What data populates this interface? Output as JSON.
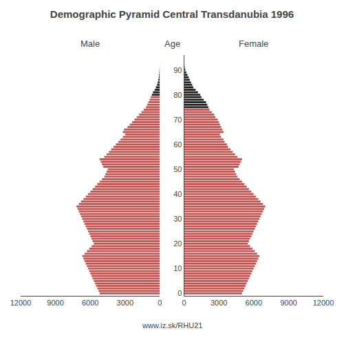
{
  "chart_data": {
    "type": "bar",
    "orientation": "horizontal",
    "title": "Demographic Pyramid Central Transdanubia 1996",
    "ylabel": "Age",
    "annotations": [
      "www.iz.sk/RHU21"
    ],
    "categories": [
      0,
      1,
      2,
      3,
      4,
      5,
      6,
      7,
      8,
      9,
      10,
      11,
      12,
      13,
      14,
      15,
      16,
      17,
      18,
      19,
      20,
      21,
      22,
      23,
      24,
      25,
      26,
      27,
      28,
      29,
      30,
      31,
      32,
      33,
      34,
      35,
      36,
      37,
      38,
      39,
      40,
      41,
      42,
      43,
      44,
      45,
      46,
      47,
      48,
      49,
      50,
      51,
      52,
      53,
      54,
      55,
      56,
      57,
      58,
      59,
      60,
      61,
      62,
      63,
      64,
      65,
      66,
      67,
      68,
      69,
      70,
      71,
      72,
      73,
      74,
      75,
      76,
      77,
      78,
      79,
      80,
      81,
      82,
      83,
      84,
      85,
      86,
      87,
      88,
      89,
      90,
      91,
      92,
      93,
      94
    ],
    "series": [
      {
        "name": "Male",
        "values": [
          5200,
          5300,
          5400,
          5500,
          5600,
          5700,
          5800,
          5900,
          6000,
          6100,
          6200,
          6300,
          6400,
          6500,
          6600,
          6700,
          6500,
          6300,
          6100,
          5900,
          5700,
          5800,
          5900,
          6000,
          6100,
          6200,
          6300,
          6400,
          6500,
          6600,
          6700,
          6800,
          6900,
          7000,
          7100,
          7200,
          7000,
          6800,
          6600,
          6400,
          6200,
          6000,
          5800,
          5600,
          5400,
          5200,
          5000,
          4800,
          4700,
          4600,
          4500,
          4900,
          5000,
          5100,
          5200,
          4800,
          4600,
          4400,
          4200,
          4000,
          3800,
          3600,
          3400,
          3200,
          3000,
          3200,
          3100,
          2800,
          2600,
          2400,
          2200,
          2000,
          1800,
          1600,
          1400,
          1200,
          1100,
          1000,
          900,
          800,
          700,
          600,
          450,
          350,
          250,
          200,
          150,
          100,
          80,
          60,
          40,
          20,
          10,
          5,
          3
        ],
        "colors": [
          "#c0504d",
          "#c0504d",
          "#c0504d",
          "#c0504d",
          "#c0504d",
          "#c0504d",
          "#c0504d",
          "#c0504d",
          "#c0504d",
          "#c0504d",
          "#c0504d",
          "#c0504d",
          "#c0504d",
          "#c0504d",
          "#c0504d",
          "#c0504d",
          "#c0504d",
          "#c0504d",
          "#c0504d",
          "#c0504d",
          "#c0504d",
          "#c0504d",
          "#c0504d",
          "#c0504d",
          "#c0504d",
          "#c0504d",
          "#c0504d",
          "#c0504d",
          "#c0504d",
          "#c0504d",
          "#c0504d",
          "#c0504d",
          "#c0504d",
          "#c0504d",
          "#c0504d",
          "#c0504d",
          "#c0504d",
          "#c0504d",
          "#c0504d",
          "#c0504d",
          "#c0504d",
          "#c0504d",
          "#c0504d",
          "#c0504d",
          "#c0504d",
          "#c0504d",
          "#c0504d",
          "#c0504d",
          "#c0504d",
          "#c0504d",
          "#c0504d",
          "#c0504d",
          "#c0504d",
          "#c0504d",
          "#c0504d",
          "#c0504d",
          "#c0504d",
          "#c0504d",
          "#c0504d",
          "#c0504d",
          "#c0504d",
          "#c0504d",
          "#c0504d",
          "#c0504d",
          "#c0504d",
          "#c0504d",
          "#c0504d",
          "#c0504d",
          "#c0504d",
          "#c0504d",
          "#c0504d",
          "#c0504d",
          "#c0504d",
          "#c0504d",
          "#c0504d",
          "#c0504d",
          "#c0504d",
          "#c0504d",
          "#c0504d",
          "#c0504d",
          "#1a1a1a",
          "#1a1a1a",
          "#1a1a1a",
          "#1a1a1a",
          "#1a1a1a",
          "#1a1a1a",
          "#1a1a1a",
          "#1a1a1a",
          "#1a1a1a",
          "#1a1a1a",
          "#1a1a1a",
          "#1a1a1a",
          "#1a1a1a",
          "#1a1a1a",
          "#1a1a1a"
        ]
      },
      {
        "name": "Female",
        "values": [
          5000,
          5100,
          5200,
          5300,
          5400,
          5500,
          5600,
          5700,
          5800,
          5900,
          6000,
          6100,
          6200,
          6300,
          6400,
          6500,
          6300,
          6100,
          5900,
          5700,
          5500,
          5600,
          5700,
          5800,
          5900,
          6000,
          6100,
          6200,
          6300,
          6400,
          6500,
          6600,
          6700,
          6800,
          6900,
          7000,
          6800,
          6600,
          6400,
          6200,
          6000,
          5800,
          5600,
          5400,
          5200,
          5000,
          4800,
          4600,
          4500,
          4400,
          4300,
          4700,
          4800,
          4900,
          5000,
          4600,
          4400,
          4200,
          4000,
          3800,
          3700,
          3500,
          3400,
          3200,
          3100,
          3400,
          3300,
          3200,
          3100,
          3000,
          2900,
          2700,
          2600,
          2400,
          2200,
          2100,
          2000,
          1900,
          1700,
          1500,
          1400,
          1200,
          1000,
          800,
          700,
          600,
          500,
          400,
          300,
          200,
          100,
          60,
          30,
          15,
          5
        ],
        "colors": [
          "#c0504d",
          "#c0504d",
          "#c0504d",
          "#c0504d",
          "#c0504d",
          "#c0504d",
          "#c0504d",
          "#c0504d",
          "#c0504d",
          "#c0504d",
          "#c0504d",
          "#c0504d",
          "#c0504d",
          "#c0504d",
          "#c0504d",
          "#c0504d",
          "#c0504d",
          "#c0504d",
          "#c0504d",
          "#c0504d",
          "#c0504d",
          "#c0504d",
          "#c0504d",
          "#c0504d",
          "#c0504d",
          "#c0504d",
          "#c0504d",
          "#c0504d",
          "#c0504d",
          "#c0504d",
          "#c0504d",
          "#c0504d",
          "#c0504d",
          "#c0504d",
          "#c0504d",
          "#c0504d",
          "#c0504d",
          "#c0504d",
          "#c0504d",
          "#c0504d",
          "#c0504d",
          "#c0504d",
          "#c0504d",
          "#c0504d",
          "#c0504d",
          "#c0504d",
          "#c0504d",
          "#c0504d",
          "#c0504d",
          "#c0504d",
          "#c0504d",
          "#c0504d",
          "#c0504d",
          "#c0504d",
          "#c0504d",
          "#c0504d",
          "#c0504d",
          "#c0504d",
          "#c0504d",
          "#c0504d",
          "#c0504d",
          "#c0504d",
          "#c0504d",
          "#c0504d",
          "#c0504d",
          "#c0504d",
          "#c0504d",
          "#c0504d",
          "#c0504d",
          "#c0504d",
          "#c0504d",
          "#c0504d",
          "#c0504d",
          "#c0504d",
          "#c0504d",
          "#1a1a1a",
          "#1a1a1a",
          "#1a1a1a",
          "#1a1a1a",
          "#1a1a1a",
          "#1a1a1a",
          "#1a1a1a",
          "#1a1a1a",
          "#1a1a1a",
          "#1a1a1a",
          "#1a1a1a",
          "#1a1a1a",
          "#1a1a1a",
          "#1a1a1a",
          "#1a1a1a",
          "#1a1a1a",
          "#1a1a1a",
          "#1a1a1a",
          "#1a1a1a",
          "#1a1a1a"
        ]
      }
    ],
    "xlim": [
      0,
      12000
    ],
    "xticks": [
      0,
      3000,
      6000,
      9000,
      12000
    ],
    "ylim": [
      -1,
      96
    ],
    "yticks": [
      0,
      10,
      20,
      30,
      40,
      50,
      60,
      70,
      80,
      90
    ],
    "grid": false
  }
}
